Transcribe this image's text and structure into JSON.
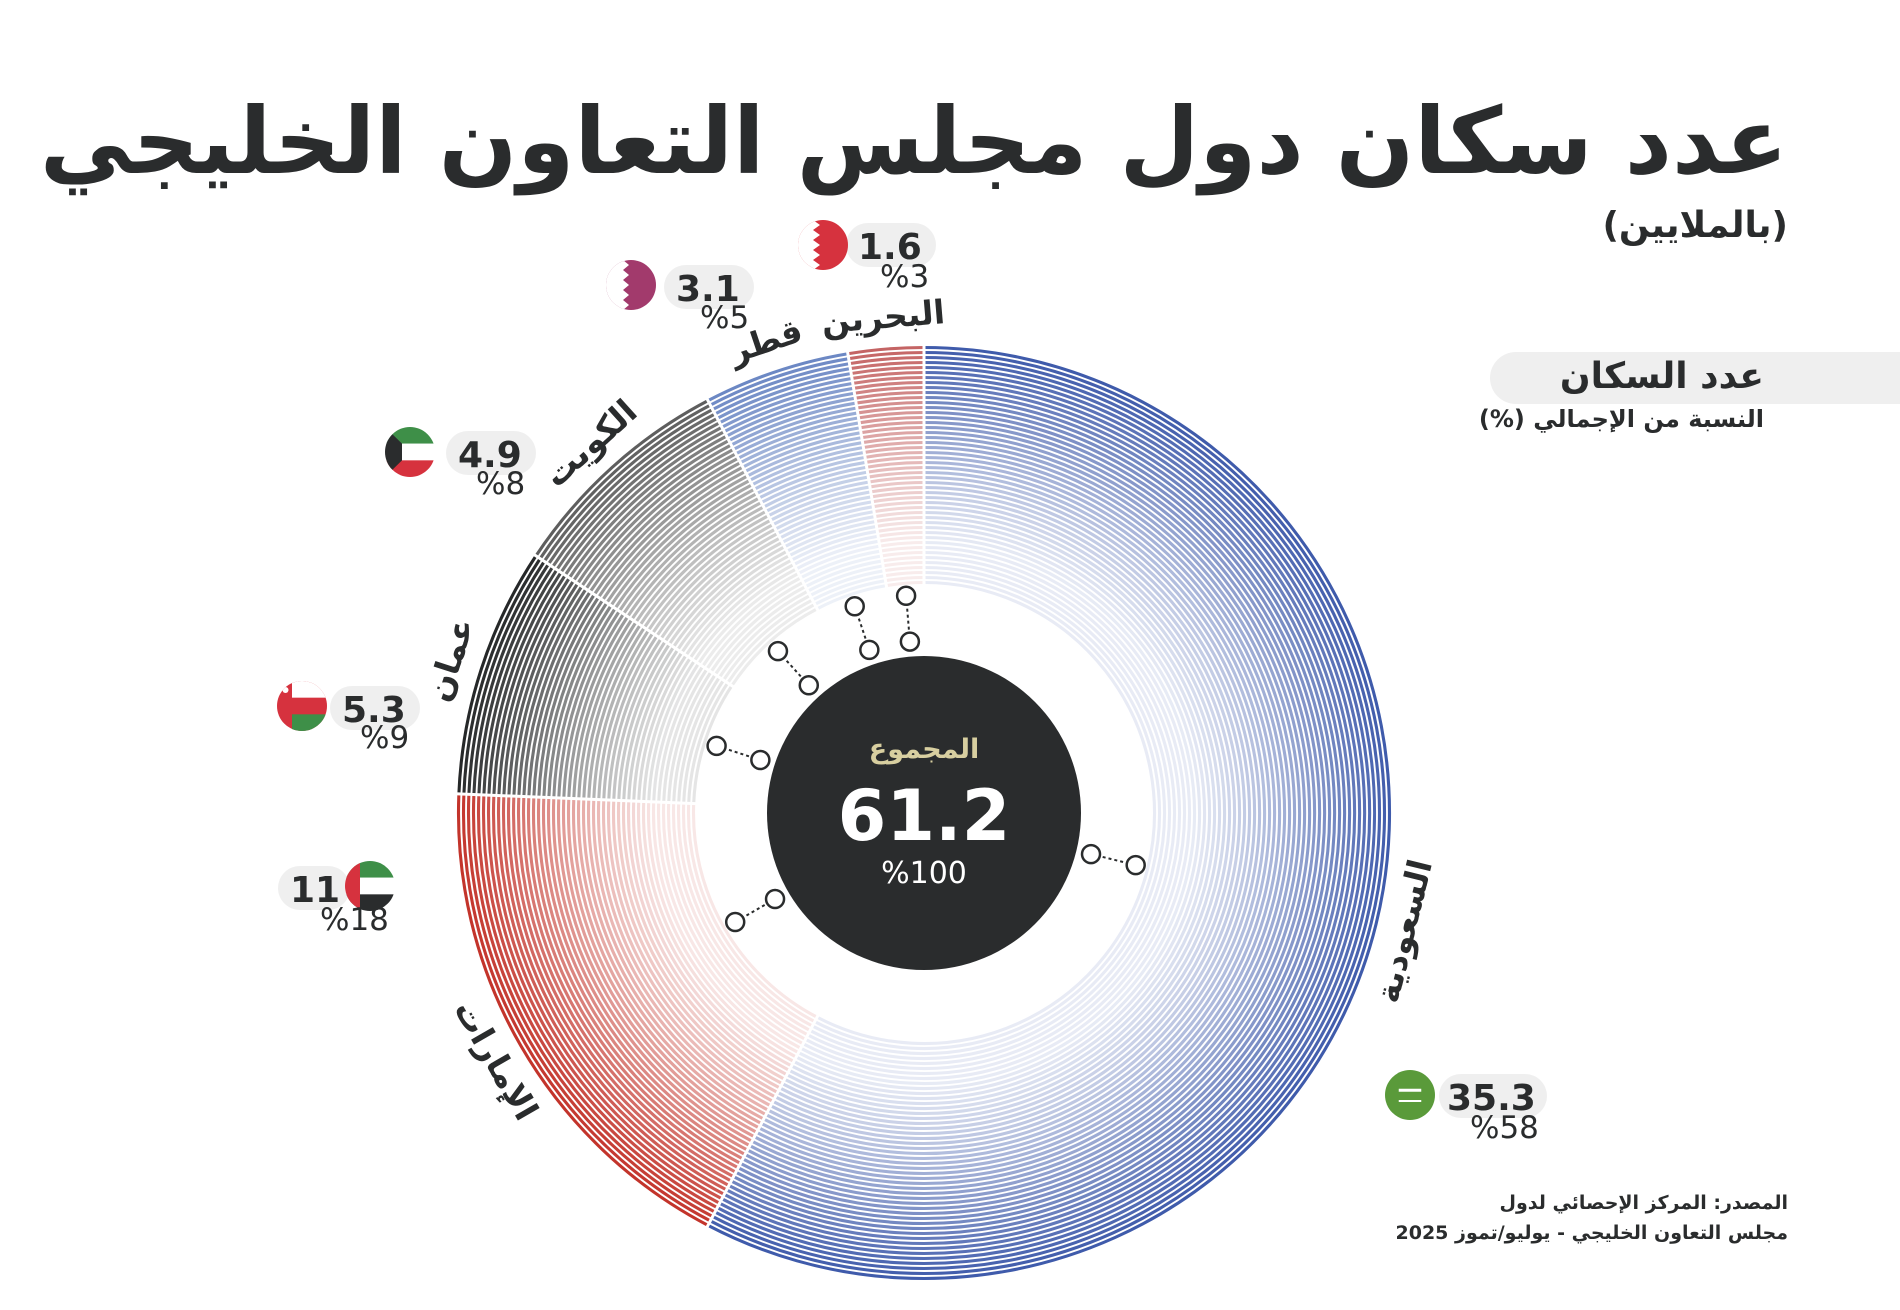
{
  "title": "عدد سكان دول مجلس التعاون الخليجي",
  "subtitle": "(بالملايين)",
  "legend": {
    "title": "عدد السكان",
    "subtitle": "النسبة من الإجمالي (%)"
  },
  "source": {
    "line1": "المصدر: المركز الإحصائي لدول",
    "line2": "مجلس التعاون الخليجي - يوليو/تموز 2025"
  },
  "chart_data": {
    "type": "pie",
    "center": {
      "label": "المجموع",
      "value": "61.2",
      "percent": "%100"
    },
    "slices": [
      {
        "name": "السعودية",
        "value": 35.3,
        "value_label": "35.3",
        "percent_label": "%58",
        "color": "#3f5bab",
        "flag": "saudi-flag-icon"
      },
      {
        "name": "الإمارات",
        "value": 11,
        "value_label": "11",
        "percent_label": "%18",
        "color": "#c3342b",
        "flag": "uae-flag-icon"
      },
      {
        "name": "عمان",
        "value": 5.3,
        "value_label": "5.3",
        "percent_label": "%9",
        "color": "#262829",
        "flag": "oman-flag-icon"
      },
      {
        "name": "الكويت",
        "value": 4.9,
        "value_label": "4.9",
        "percent_label": "%8",
        "color": "#5e5e5e",
        "flag": "kuwait-flag-icon"
      },
      {
        "name": "قطر",
        "value": 3.1,
        "value_label": "3.1",
        "percent_label": "%5",
        "color": "#6c88c4",
        "flag": "qatar-flag-icon"
      },
      {
        "name": "البحرين",
        "value": 1.6,
        "value_label": "1.6",
        "percent_label": "%3",
        "color": "#c46464",
        "flag": "bahrain-flag-icon"
      }
    ]
  }
}
